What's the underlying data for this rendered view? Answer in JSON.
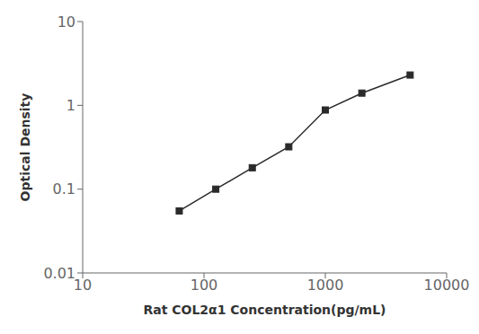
{
  "chart_data": {
    "type": "line",
    "xlabel": "Rat COL2α1 Concentration(pg/mL)",
    "ylabel": "Optical Density",
    "x": [
      62.5,
      125,
      250,
      500,
      1000,
      2000,
      5000
    ],
    "values": [
      0.055,
      0.1,
      0.18,
      0.32,
      0.88,
      1.4,
      2.3
    ],
    "xlim": [
      10,
      10000
    ],
    "ylim": [
      0.01,
      10
    ],
    "xticks": [
      10,
      100,
      1000,
      10000
    ],
    "yticks": [
      0.01,
      0.1,
      1,
      10
    ],
    "log": true,
    "color": "#2a2a2a",
    "marker": "square",
    "grid": false
  }
}
